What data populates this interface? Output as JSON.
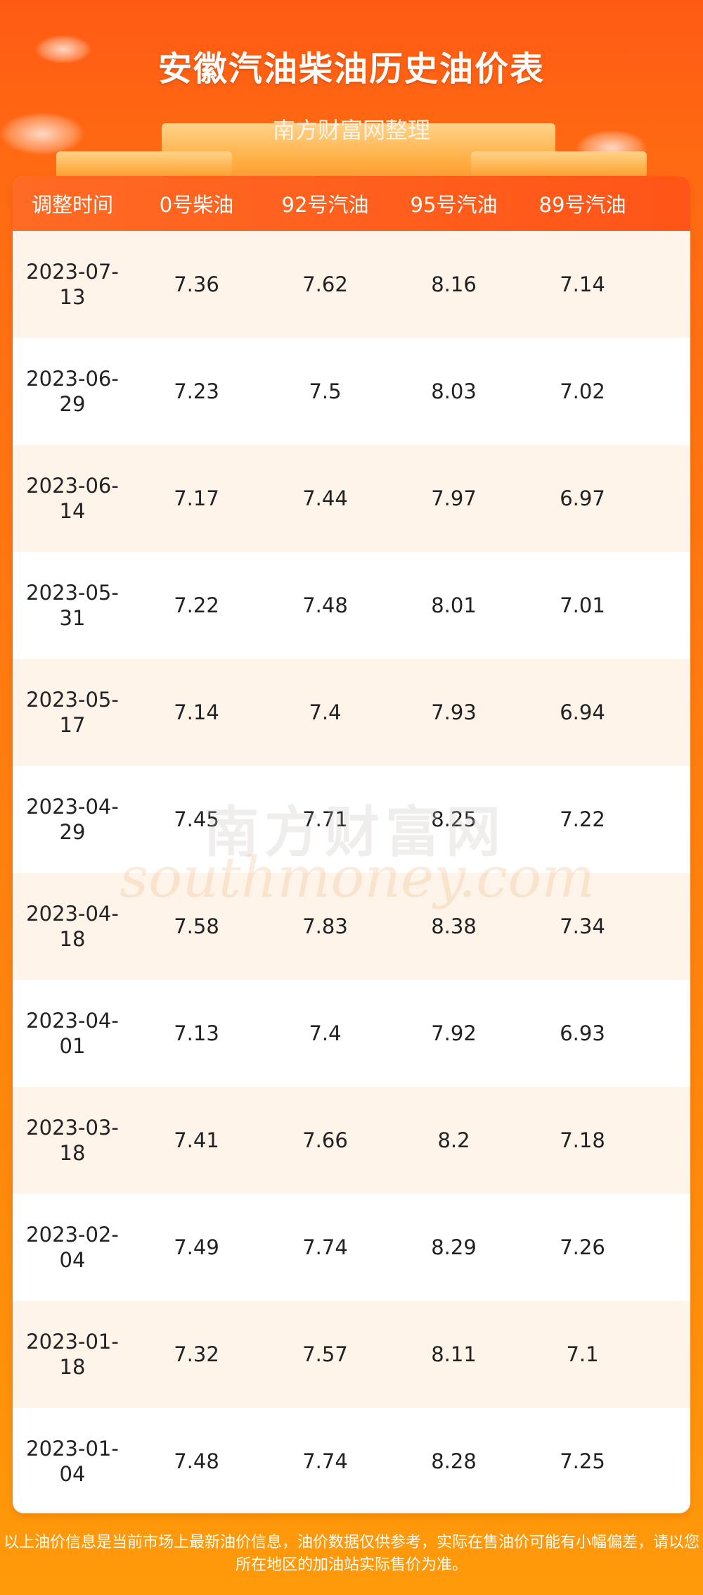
{
  "header": {
    "title": "安徽汽油柴油历史油价表",
    "subtitle": "南方财富网整理"
  },
  "table": {
    "columns": [
      "调整时间",
      "0号柴油",
      "92号汽油",
      "95号汽油",
      "89号汽油"
    ],
    "rows": [
      {
        "date": "2023-07-13",
        "diesel0": "7.36",
        "gas92": "7.62",
        "gas95": "8.16",
        "gas89": "7.14"
      },
      {
        "date": "2023-06-29",
        "diesel0": "7.23",
        "gas92": "7.5",
        "gas95": "8.03",
        "gas89": "7.02"
      },
      {
        "date": "2023-06-14",
        "diesel0": "7.17",
        "gas92": "7.44",
        "gas95": "7.97",
        "gas89": "6.97"
      },
      {
        "date": "2023-05-31",
        "diesel0": "7.22",
        "gas92": "7.48",
        "gas95": "8.01",
        "gas89": "7.01"
      },
      {
        "date": "2023-05-17",
        "diesel0": "7.14",
        "gas92": "7.4",
        "gas95": "7.93",
        "gas89": "6.94"
      },
      {
        "date": "2023-04-29",
        "diesel0": "7.45",
        "gas92": "7.71",
        "gas95": "8.25",
        "gas89": "7.22"
      },
      {
        "date": "2023-04-18",
        "diesel0": "7.58",
        "gas92": "7.83",
        "gas95": "8.38",
        "gas89": "7.34"
      },
      {
        "date": "2023-04-01",
        "diesel0": "7.13",
        "gas92": "7.4",
        "gas95": "7.92",
        "gas89": "6.93"
      },
      {
        "date": "2023-03-18",
        "diesel0": "7.41",
        "gas92": "7.66",
        "gas95": "8.2",
        "gas89": "7.18"
      },
      {
        "date": "2023-02-04",
        "diesel0": "7.49",
        "gas92": "7.74",
        "gas95": "8.29",
        "gas89": "7.26"
      },
      {
        "date": "2023-01-18",
        "diesel0": "7.32",
        "gas92": "7.57",
        "gas95": "8.11",
        "gas89": "7.1"
      },
      {
        "date": "2023-01-04",
        "diesel0": "7.48",
        "gas92": "7.74",
        "gas95": "8.28",
        "gas89": "7.25"
      }
    ]
  },
  "watermark": {
    "cn": "南方财富网",
    "en": "southmoney.com"
  },
  "footer": {
    "disclaimer": "以上油价信息是当前市场上最新油价信息，油价数据仅供参考，实际在售油价可能有小幅偏差，请以您所在地区的加油站实际售价为准。"
  },
  "colors": {
    "header_bar": "#ff5a1c",
    "row_alt": "#fff4ea",
    "background": "#ff7a10"
  }
}
